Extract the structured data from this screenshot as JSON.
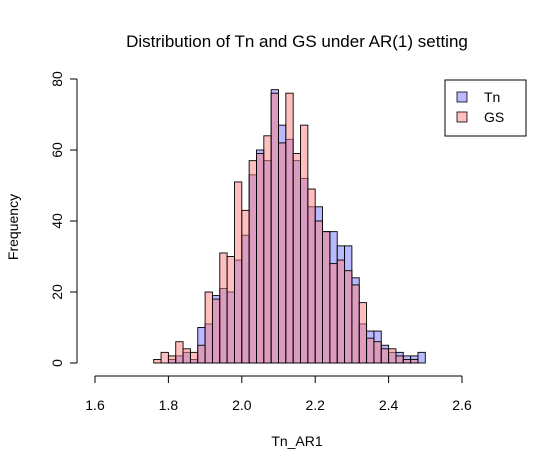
{
  "chart_data": {
    "type": "bar",
    "title": "Distribution of Tn and GS under AR(1) setting",
    "xlabel": "Tn_AR1",
    "ylabel": "Frequency",
    "xlim": [
      1.6,
      2.6
    ],
    "ylim": [
      0,
      80
    ],
    "x_ticks": [
      "1.6",
      "1.8",
      "2.0",
      "2.2",
      "2.4",
      "2.6"
    ],
    "y_ticks": [
      "0",
      "20",
      "40",
      "60",
      "80"
    ],
    "bin_width": 0.02,
    "grid": false,
    "legend_position": "top-right",
    "series": [
      {
        "name": "Tn",
        "color": "#7f7fff",
        "bins": [
          {
            "x0": 1.8,
            "v": 1
          },
          {
            "x0": 1.82,
            "v": 2
          },
          {
            "x0": 1.84,
            "v": 3
          },
          {
            "x0": 1.86,
            "v": 1
          },
          {
            "x0": 1.88,
            "v": 10
          },
          {
            "x0": 1.9,
            "v": 11
          },
          {
            "x0": 1.92,
            "v": 19
          },
          {
            "x0": 1.94,
            "v": 21
          },
          {
            "x0": 1.96,
            "v": 20
          },
          {
            "x0": 1.98,
            "v": 29
          },
          {
            "x0": 2.0,
            "v": 36
          },
          {
            "x0": 2.02,
            "v": 53
          },
          {
            "x0": 2.04,
            "v": 60
          },
          {
            "x0": 2.06,
            "v": 57
          },
          {
            "x0": 2.08,
            "v": 77
          },
          {
            "x0": 2.1,
            "v": 67
          },
          {
            "x0": 2.12,
            "v": 63
          },
          {
            "x0": 2.14,
            "v": 57
          },
          {
            "x0": 2.16,
            "v": 52
          },
          {
            "x0": 2.18,
            "v": 44
          },
          {
            "x0": 2.2,
            "v": 44
          },
          {
            "x0": 2.22,
            "v": 37
          },
          {
            "x0": 2.24,
            "v": 37
          },
          {
            "x0": 2.26,
            "v": 33
          },
          {
            "x0": 2.28,
            "v": 33
          },
          {
            "x0": 2.3,
            "v": 24
          },
          {
            "x0": 2.32,
            "v": 11
          },
          {
            "x0": 2.34,
            "v": 9
          },
          {
            "x0": 2.36,
            "v": 9
          },
          {
            "x0": 2.38,
            "v": 5
          },
          {
            "x0": 2.4,
            "v": 3
          },
          {
            "x0": 2.42,
            "v": 3
          },
          {
            "x0": 2.44,
            "v": 2
          },
          {
            "x0": 2.46,
            "v": 2
          },
          {
            "x0": 2.48,
            "v": 3
          }
        ]
      },
      {
        "name": "GS",
        "color": "#ff7f7f",
        "bins": [
          {
            "x0": 1.76,
            "v": 1
          },
          {
            "x0": 1.78,
            "v": 3
          },
          {
            "x0": 1.8,
            "v": 2
          },
          {
            "x0": 1.82,
            "v": 6
          },
          {
            "x0": 1.84,
            "v": 4
          },
          {
            "x0": 1.86,
            "v": 3
          },
          {
            "x0": 1.88,
            "v": 5
          },
          {
            "x0": 1.9,
            "v": 20
          },
          {
            "x0": 1.92,
            "v": 18
          },
          {
            "x0": 1.94,
            "v": 31
          },
          {
            "x0": 1.96,
            "v": 30
          },
          {
            "x0": 1.98,
            "v": 51
          },
          {
            "x0": 2.0,
            "v": 43
          },
          {
            "x0": 2.02,
            "v": 57
          },
          {
            "x0": 2.04,
            "v": 59
          },
          {
            "x0": 2.06,
            "v": 64
          },
          {
            "x0": 2.08,
            "v": 76
          },
          {
            "x0": 2.1,
            "v": 62
          },
          {
            "x0": 2.12,
            "v": 76
          },
          {
            "x0": 2.14,
            "v": 59
          },
          {
            "x0": 2.16,
            "v": 67
          },
          {
            "x0": 2.18,
            "v": 49
          },
          {
            "x0": 2.2,
            "v": 40
          },
          {
            "x0": 2.22,
            "v": 37
          },
          {
            "x0": 2.24,
            "v": 28
          },
          {
            "x0": 2.26,
            "v": 29
          },
          {
            "x0": 2.28,
            "v": 26
          },
          {
            "x0": 2.3,
            "v": 22
          },
          {
            "x0": 2.32,
            "v": 17
          },
          {
            "x0": 2.34,
            "v": 7
          },
          {
            "x0": 2.36,
            "v": 6
          },
          {
            "x0": 2.38,
            "v": 4
          },
          {
            "x0": 2.4,
            "v": 4
          },
          {
            "x0": 2.42,
            "v": 2
          },
          {
            "x0": 2.44,
            "v": 1
          },
          {
            "x0": 2.46,
            "v": 1
          }
        ]
      }
    ]
  }
}
